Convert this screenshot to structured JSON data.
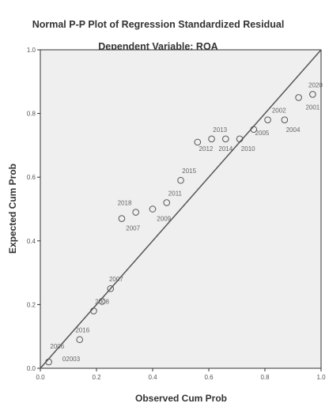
{
  "chart_data": {
    "type": "scatter",
    "title": "Normal P-P Plot of Regression Standardized Residual",
    "subtitle": "Dependent Variable: ROA",
    "xlabel": "Observed Cum Prob",
    "ylabel": "Expected Cum Prob",
    "xlim": [
      0.0,
      1.0
    ],
    "ylim": [
      0.0,
      1.0
    ],
    "x_ticks": [
      "0.0",
      "0.2",
      "0.4",
      "0.6",
      "0.8",
      "1.0"
    ],
    "y_ticks": [
      "0.0",
      "0.2",
      "0.4",
      "0.6",
      "0.8",
      "1.0"
    ],
    "reference_line": [
      [
        0,
        0
      ],
      [
        1,
        1
      ]
    ],
    "grid": false,
    "plot_background": "#efefef",
    "points": [
      {
        "x": 0.03,
        "y": 0.02
      },
      {
        "x": 0.14,
        "y": 0.09
      },
      {
        "x": 0.19,
        "y": 0.18
      },
      {
        "x": 0.22,
        "y": 0.21
      },
      {
        "x": 0.25,
        "y": 0.25
      },
      {
        "x": 0.29,
        "y": 0.47
      },
      {
        "x": 0.34,
        "y": 0.49
      },
      {
        "x": 0.4,
        "y": 0.5
      },
      {
        "x": 0.45,
        "y": 0.52
      },
      {
        "x": 0.5,
        "y": 0.59
      },
      {
        "x": 0.56,
        "y": 0.71
      },
      {
        "x": 0.61,
        "y": 0.72
      },
      {
        "x": 0.66,
        "y": 0.72
      },
      {
        "x": 0.71,
        "y": 0.72
      },
      {
        "x": 0.76,
        "y": 0.75
      },
      {
        "x": 0.81,
        "y": 0.78
      },
      {
        "x": 0.87,
        "y": 0.78
      },
      {
        "x": 0.92,
        "y": 0.85
      },
      {
        "x": 0.97,
        "y": 0.86
      }
    ],
    "point_labels": [
      {
        "text": "02003",
        "x": 0.11,
        "y": 0.03
      },
      {
        "text": "2006",
        "x": 0.06,
        "y": 0.07
      },
      {
        "text": "2016",
        "x": 0.15,
        "y": 0.12
      },
      {
        "text": "2008",
        "x": 0.22,
        "y": 0.21
      },
      {
        "text": "2007",
        "x": 0.27,
        "y": 0.28
      },
      {
        "text": "2018",
        "x": 0.3,
        "y": 0.52
      },
      {
        "text": "2007",
        "x": 0.33,
        "y": 0.44
      },
      {
        "text": "2009",
        "x": 0.44,
        "y": 0.47
      },
      {
        "text": "2011",
        "x": 0.48,
        "y": 0.55
      },
      {
        "text": "2015",
        "x": 0.53,
        "y": 0.62
      },
      {
        "text": "2013",
        "x": 0.64,
        "y": 0.75
      },
      {
        "text": "2012",
        "x": 0.59,
        "y": 0.69
      },
      {
        "text": "2014",
        "x": 0.66,
        "y": 0.69
      },
      {
        "text": "2010",
        "x": 0.74,
        "y": 0.69
      },
      {
        "text": "2005",
        "x": 0.79,
        "y": 0.74
      },
      {
        "text": "2002",
        "x": 0.85,
        "y": 0.81
      },
      {
        "text": "2004",
        "x": 0.9,
        "y": 0.75
      },
      {
        "text": "2020",
        "x": 0.98,
        "y": 0.89
      },
      {
        "text": "2001",
        "x": 0.97,
        "y": 0.82
      }
    ]
  }
}
